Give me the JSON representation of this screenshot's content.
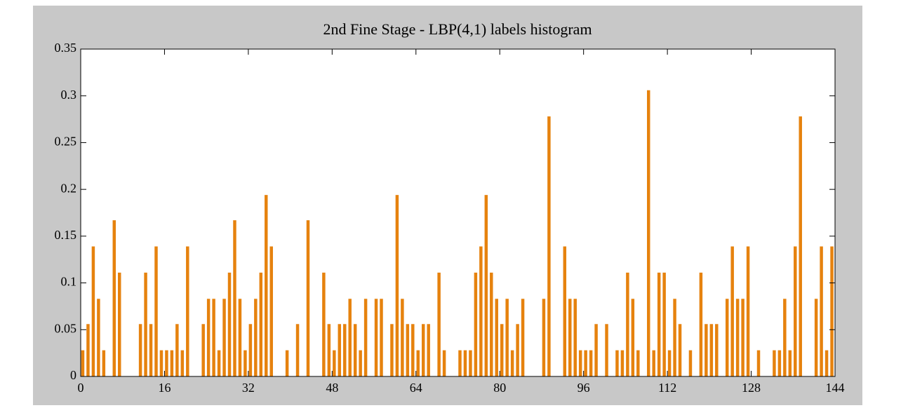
{
  "chart_data": {
    "type": "histogram",
    "title": "2nd Fine Stage - LBP(4,1) labels histogram",
    "color": "#e6820e",
    "bins": [
      0,
      1,
      2,
      3,
      4,
      5,
      6,
      7,
      8,
      9,
      10,
      11,
      12,
      13,
      14,
      15,
      16,
      17,
      18,
      19,
      20,
      21,
      22,
      23,
      24,
      25,
      26,
      27,
      28,
      29,
      30,
      31,
      32,
      33,
      34,
      35,
      36,
      37,
      38,
      39,
      40,
      41,
      42,
      43,
      44,
      45,
      46,
      47,
      48,
      49,
      50,
      51,
      52,
      53,
      54,
      55,
      56,
      57,
      58,
      59,
      60,
      61,
      62,
      63,
      64,
      65,
      66,
      67,
      68,
      69,
      70,
      71,
      72,
      73,
      74,
      75,
      76,
      77,
      78,
      79,
      80,
      81,
      82,
      83,
      84,
      85,
      86,
      87,
      88,
      89,
      90,
      91,
      92,
      93,
      94,
      95,
      96,
      97,
      98,
      99,
      100,
      101,
      102,
      103,
      104,
      105,
      106,
      107,
      108,
      109,
      110,
      111,
      112,
      113,
      114,
      115,
      116,
      117,
      118,
      119,
      120,
      121,
      122,
      123,
      124,
      125,
      126,
      127,
      128,
      129,
      130,
      131,
      132,
      133,
      134,
      135,
      136,
      137,
      138,
      139,
      140,
      141,
      142,
      143,
      144
    ],
    "values": [
      0.028,
      0.056,
      0.139,
      0.083,
      0.028,
      0,
      0.167,
      0.111,
      0,
      0,
      0,
      0.056,
      0.111,
      0.056,
      0.139,
      0.028,
      0.028,
      0.028,
      0.056,
      0.028,
      0.139,
      0,
      0,
      0.056,
      0.083,
      0.083,
      0.028,
      0.083,
      0.111,
      0.167,
      0.083,
      0.028,
      0.056,
      0.083,
      0.111,
      0.194,
      0.139,
      0,
      0,
      0.028,
      0,
      0.056,
      0,
      0.167,
      0,
      0,
      0.111,
      0.056,
      0.028,
      0.056,
      0.056,
      0.083,
      0.056,
      0.028,
      0.083,
      0,
      0.083,
      0.083,
      0,
      0.056,
      0.194,
      0.083,
      0.056,
      0.056,
      0.028,
      0.056,
      0.056,
      0,
      0.111,
      0.028,
      0,
      0,
      0.028,
      0.028,
      0.028,
      0.111,
      0.139,
      0.194,
      0.111,
      0.083,
      0.056,
      0.083,
      0.028,
      0.056,
      0.083,
      0,
      0,
      0,
      0.083,
      0.278,
      0,
      0,
      0.139,
      0.083,
      0.083,
      0.028,
      0.028,
      0.028,
      0.056,
      0,
      0.056,
      0,
      0.028,
      0.028,
      0.111,
      0.083,
      0.028,
      0,
      0.306,
      0.028,
      0.111,
      0.111,
      0.028,
      0.083,
      0.056,
      0,
      0.028,
      0,
      0.111,
      0.056,
      0.056,
      0.056,
      0,
      0.083,
      0.139,
      0.083,
      0.083,
      0.139,
      0,
      0.028,
      0,
      0,
      0.028,
      0.028,
      0.083,
      0.028,
      0.139,
      0.278,
      0,
      0,
      0.083,
      0.139,
      0.028,
      0.139
    ],
    "xlim": [
      0,
      144
    ],
    "xticks": [
      0,
      16,
      32,
      48,
      64,
      80,
      96,
      112,
      128,
      144
    ],
    "ylim": [
      0,
      0.35
    ],
    "yticks": [
      0,
      0.05,
      0.1,
      0.15,
      0.2,
      0.25,
      0.3,
      0.35
    ]
  }
}
